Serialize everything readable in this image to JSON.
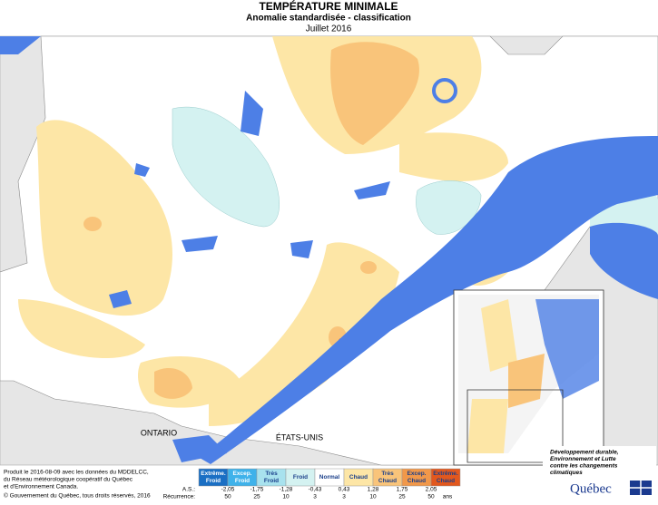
{
  "header": {
    "title": "TEMPÉRATURE MINIMALE",
    "subtitle": "Anomalie standardisée - classification",
    "date": "Juillet 2016"
  },
  "map": {
    "labels": [
      "ONTARIO",
      "ÉTATS-UNIS"
    ]
  },
  "footer": {
    "credits": [
      "Produit le 2016-08-09 avec les données du MDDELCC,",
      "du Réseau météorologique coopératif du Québec",
      "et d'Environnement Canada."
    ],
    "copyright": "© Gouvernement du Québec, tous droits réservés, 2016"
  },
  "legend": {
    "classes": [
      {
        "lines": [
          "Extrême.",
          "Froid"
        ],
        "color": "#1a6fc4",
        "text_color": "#ffffff"
      },
      {
        "lines": [
          "Excep.",
          "Froid"
        ],
        "color": "#3fb2ea",
        "text_color": "#ffffff"
      },
      {
        "lines": [
          "Très",
          "Froid"
        ],
        "color": "#a8e2ee",
        "text_color": "#1a3f8a"
      },
      {
        "lines": [
          "Froid"
        ],
        "color": "#d4f2f1",
        "text_color": "#1a3f8a"
      },
      {
        "lines": [
          "Normal"
        ],
        "color": "#ffffff",
        "text_color": "#1a3f8a"
      },
      {
        "lines": [
          "Chaud"
        ],
        "color": "#fde6a6",
        "text_color": "#1a3f8a"
      },
      {
        "lines": [
          "Très",
          "Chaud"
        ],
        "color": "#f9c47a",
        "text_color": "#1a3f8a"
      },
      {
        "lines": [
          "Excep.",
          "Chaud"
        ],
        "color": "#f1984a",
        "text_color": "#1a3f8a"
      },
      {
        "lines": [
          "Extrême.",
          "Chaud"
        ],
        "color": "#e2581e",
        "text_color": "#1a3f8a"
      }
    ],
    "as_title": "A.S.:",
    "as_values": [
      "-2,05",
      "-1,75",
      "-1,28",
      "-0,43",
      "0,43",
      "1,28",
      "1,75",
      "2,05"
    ],
    "recurrence_title": "Récurrence:",
    "recurrence_values": [
      "50",
      "25",
      "10",
      "3",
      "3",
      "10",
      "25",
      "50"
    ],
    "recurrence_unit": "ans"
  },
  "logo": {
    "lines": [
      "Développement durable,",
      "Environnement et Lutte",
      "contre les changements",
      "climatiques"
    ],
    "name": "Québec"
  }
}
